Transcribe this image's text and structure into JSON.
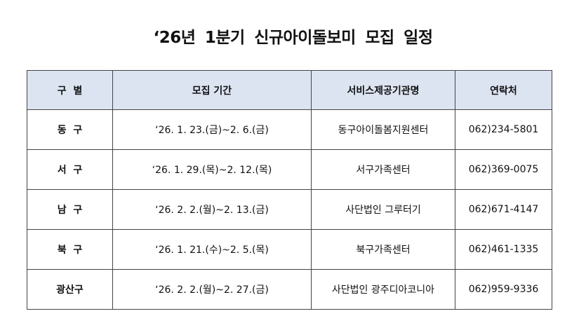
{
  "title": "‘26년 1분기 신규아이돌보미 모집 일정",
  "table": {
    "header_bg": "#dce4f2",
    "headers": [
      "구  별",
      "모집 기간",
      "서비스제공기관명",
      "연락처"
    ],
    "rows": [
      [
        "동  구",
        "‘26. 1. 23.(금)~2. 6.(금)",
        "동구아이돌봄지원센터",
        "062)234-5801"
      ],
      [
        "서  구",
        "‘26. 1. 29.(목)~2. 12.(목)",
        "서구가족센터",
        "062)369-0075"
      ],
      [
        "남  구",
        "‘26. 2. 2.(월)~2. 13.(금)",
        "사단법인 그루터기",
        "062)671-4147"
      ],
      [
        "북  구",
        "‘26. 1. 21.(수)~2. 5.(목)",
        "북구가족센터",
        "062)461-1335"
      ],
      [
        "광산구",
        "‘26. 2. 2.(월)~2. 27.(금)",
        "사단법인 광주디아코니아",
        "062)959-9336"
      ]
    ]
  }
}
